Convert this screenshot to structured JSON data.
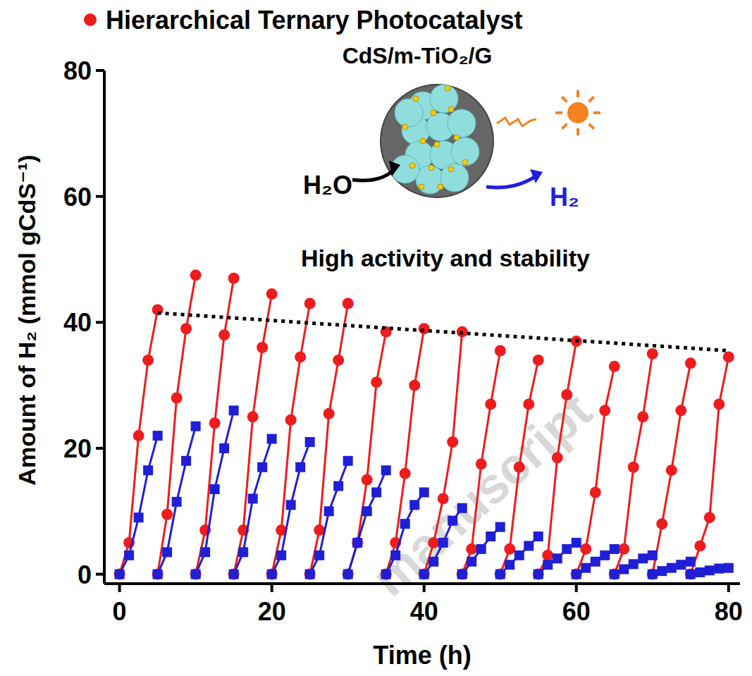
{
  "chart_data": {
    "type": "line",
    "title": "CdS/m-TiO₂/G",
    "xlabel": "Time (h)",
    "ylabel": "Amount of H₂ (mmol gCdS⁻¹)",
    "xlim": [
      -2,
      81.5
    ],
    "ylim": [
      -1.5,
      80
    ],
    "xticks": [
      0,
      20,
      40,
      60,
      80
    ],
    "yticks": [
      0,
      20,
      40,
      60,
      80
    ],
    "legend": "top-left",
    "annotations": [
      {
        "text": "H₂O"
      },
      {
        "text": "H₂",
        "color": "#1f1fe0"
      },
      {
        "text": "High activity and stability"
      },
      {
        "text": "manuscript",
        "color": "#d8d8d8"
      }
    ],
    "x": [
      0,
      1.25,
      2.5,
      3.75,
      5,
      5,
      5,
      6.25,
      7.5,
      8.75,
      10,
      10,
      10,
      11.25,
      12.5,
      13.75,
      15,
      15,
      15,
      16.25,
      17.5,
      18.75,
      20,
      20,
      20,
      21.25,
      22.5,
      23.75,
      25,
      25,
      25,
      26.25,
      27.5,
      28.75,
      30,
      30,
      30,
      31.25,
      32.5,
      33.75,
      35,
      35,
      35,
      36.25,
      37.5,
      38.75,
      40,
      40,
      40,
      41.25,
      42.5,
      43.75,
      45,
      45,
      45,
      46.25,
      47.5,
      48.75,
      50,
      50,
      50,
      51.25,
      52.5,
      53.75,
      55,
      55,
      55,
      56.25,
      57.5,
      58.75,
      60,
      60,
      60,
      61.25,
      62.5,
      63.75,
      65,
      65,
      65,
      66.25,
      67.5,
      68.75,
      70,
      70,
      70,
      71.25,
      72.5,
      73.75,
      75,
      75,
      75,
      76.25,
      77.5,
      78.75,
      80
    ],
    "series": [
      {
        "name": "Hierarchical Ternary  Photocatalyst",
        "color": "#ee1c1c",
        "marker": "circle",
        "line_style": "solid",
        "values": [
          0,
          5,
          22,
          34,
          42,
          null,
          0,
          9.5,
          28,
          39,
          47.5,
          null,
          0,
          7,
          24,
          38,
          47,
          null,
          0,
          7,
          25,
          36,
          44.5,
          null,
          0,
          7,
          24.5,
          34.5,
          43,
          null,
          0,
          7,
          25.5,
          34,
          43,
          null,
          0,
          5,
          15,
          30.5,
          38.5,
          null,
          0,
          5,
          16,
          30,
          39,
          null,
          0,
          5,
          12,
          21,
          38.5,
          null,
          0,
          4,
          17.5,
          27,
          35.5,
          null,
          0,
          4,
          17,
          27,
          34,
          null,
          0,
          3,
          18.5,
          28.5,
          37,
          null,
          0,
          4,
          13,
          26,
          33,
          null,
          0,
          4,
          17,
          25,
          35,
          null,
          0,
          8,
          16.5,
          26,
          33.5,
          null,
          0,
          4.5,
          9,
          27,
          34.5
        ]
      },
      {
        "color": "#1f1fd6",
        "marker": "square",
        "line_style": "solid",
        "values": [
          0,
          3,
          9,
          16.5,
          22,
          null,
          0,
          3.5,
          11.5,
          18,
          23.5,
          null,
          0,
          3.5,
          13.5,
          20,
          26,
          null,
          0,
          3.5,
          12,
          17,
          21.5,
          null,
          0,
          3,
          11,
          17,
          21,
          null,
          0,
          3,
          10,
          14,
          18,
          null,
          0,
          5,
          10,
          13,
          16.5,
          null,
          0,
          3,
          8,
          11,
          13,
          null,
          0,
          2,
          5,
          8.5,
          10.5,
          null,
          0,
          2,
          4,
          6,
          7.5,
          null,
          0,
          1.5,
          3,
          4.5,
          6,
          null,
          0,
          1.5,
          2.5,
          4,
          5,
          null,
          0,
          1,
          2,
          3,
          4,
          null,
          0,
          0.8,
          1.6,
          2.5,
          3,
          null,
          0,
          0.5,
          1,
          1.5,
          2,
          null,
          0,
          0.3,
          0.6,
          0.9,
          1
        ]
      },
      {
        "color": "#000000",
        "marker": "none",
        "line_style": "dotted",
        "x": [
          5,
          80
        ],
        "values": [
          41.5,
          35.5
        ]
      }
    ]
  }
}
